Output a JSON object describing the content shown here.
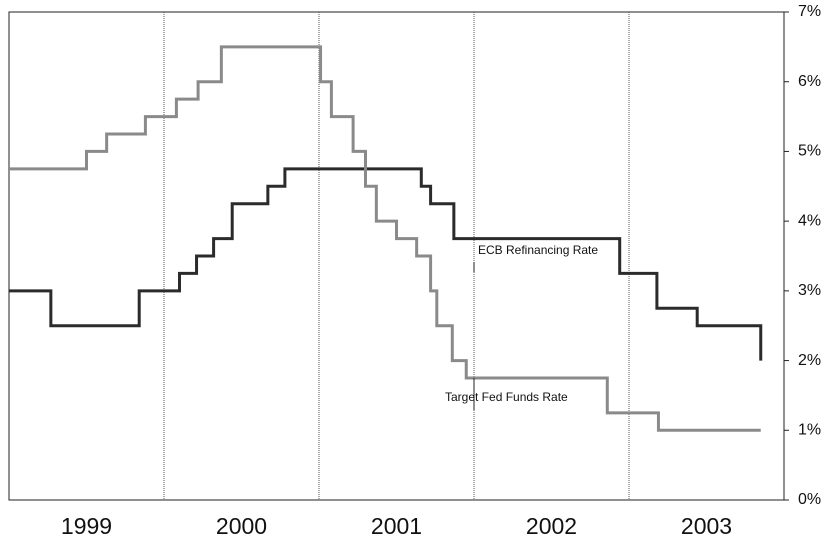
{
  "chart_data": {
    "type": "line",
    "step": "post",
    "xlim": [
      1999,
      2004
    ],
    "xticks": [
      1999,
      2000,
      2001,
      2002,
      2003
    ],
    "ylim": [
      0,
      7
    ],
    "yticks": [
      {
        "value": 0,
        "label": "0%"
      },
      {
        "value": 1,
        "label": "1%"
      },
      {
        "value": 2,
        "label": "2%"
      },
      {
        "value": 3,
        "label": "3%"
      },
      {
        "value": 4,
        "label": "4%"
      },
      {
        "value": 5,
        "label": "5%"
      },
      {
        "value": 6,
        "label": "6%"
      },
      {
        "value": 7,
        "label": "7%"
      }
    ],
    "y_axis_side": "right",
    "grid": "x",
    "series": [
      {
        "name": "ECB Refinancing Rate",
        "color": "#2b2b2b",
        "x": [
          1999.0,
          1999.27,
          1999.84,
          2000.1,
          2000.21,
          2000.32,
          2000.44,
          2000.67,
          2000.78,
          2001.66,
          2001.72,
          2001.87,
          2002.94,
          2003.18,
          2003.44,
          2003.85
        ],
        "values": [
          3.0,
          2.5,
          3.0,
          3.25,
          3.5,
          3.75,
          4.25,
          4.5,
          4.75,
          4.5,
          4.25,
          3.75,
          3.25,
          2.75,
          2.5,
          2.0
        ]
      },
      {
        "name": "Target Fed Funds Rate",
        "color": "#8a8a8a",
        "x": [
          1999.0,
          1999.5,
          1999.63,
          1999.88,
          2000.08,
          2000.22,
          2000.37,
          2001.01,
          2001.08,
          2001.22,
          2001.3,
          2001.37,
          2001.5,
          2001.63,
          2001.72,
          2001.76,
          2001.86,
          2001.95,
          2002.86,
          2003.19,
          2003.85
        ],
        "values": [
          4.75,
          5.0,
          5.25,
          5.5,
          5.75,
          6.0,
          6.5,
          6.0,
          5.5,
          5.0,
          4.5,
          4.0,
          3.75,
          3.5,
          3.0,
          2.5,
          2.0,
          1.75,
          1.25,
          1.0,
          1.0
        ]
      }
    ]
  }
}
